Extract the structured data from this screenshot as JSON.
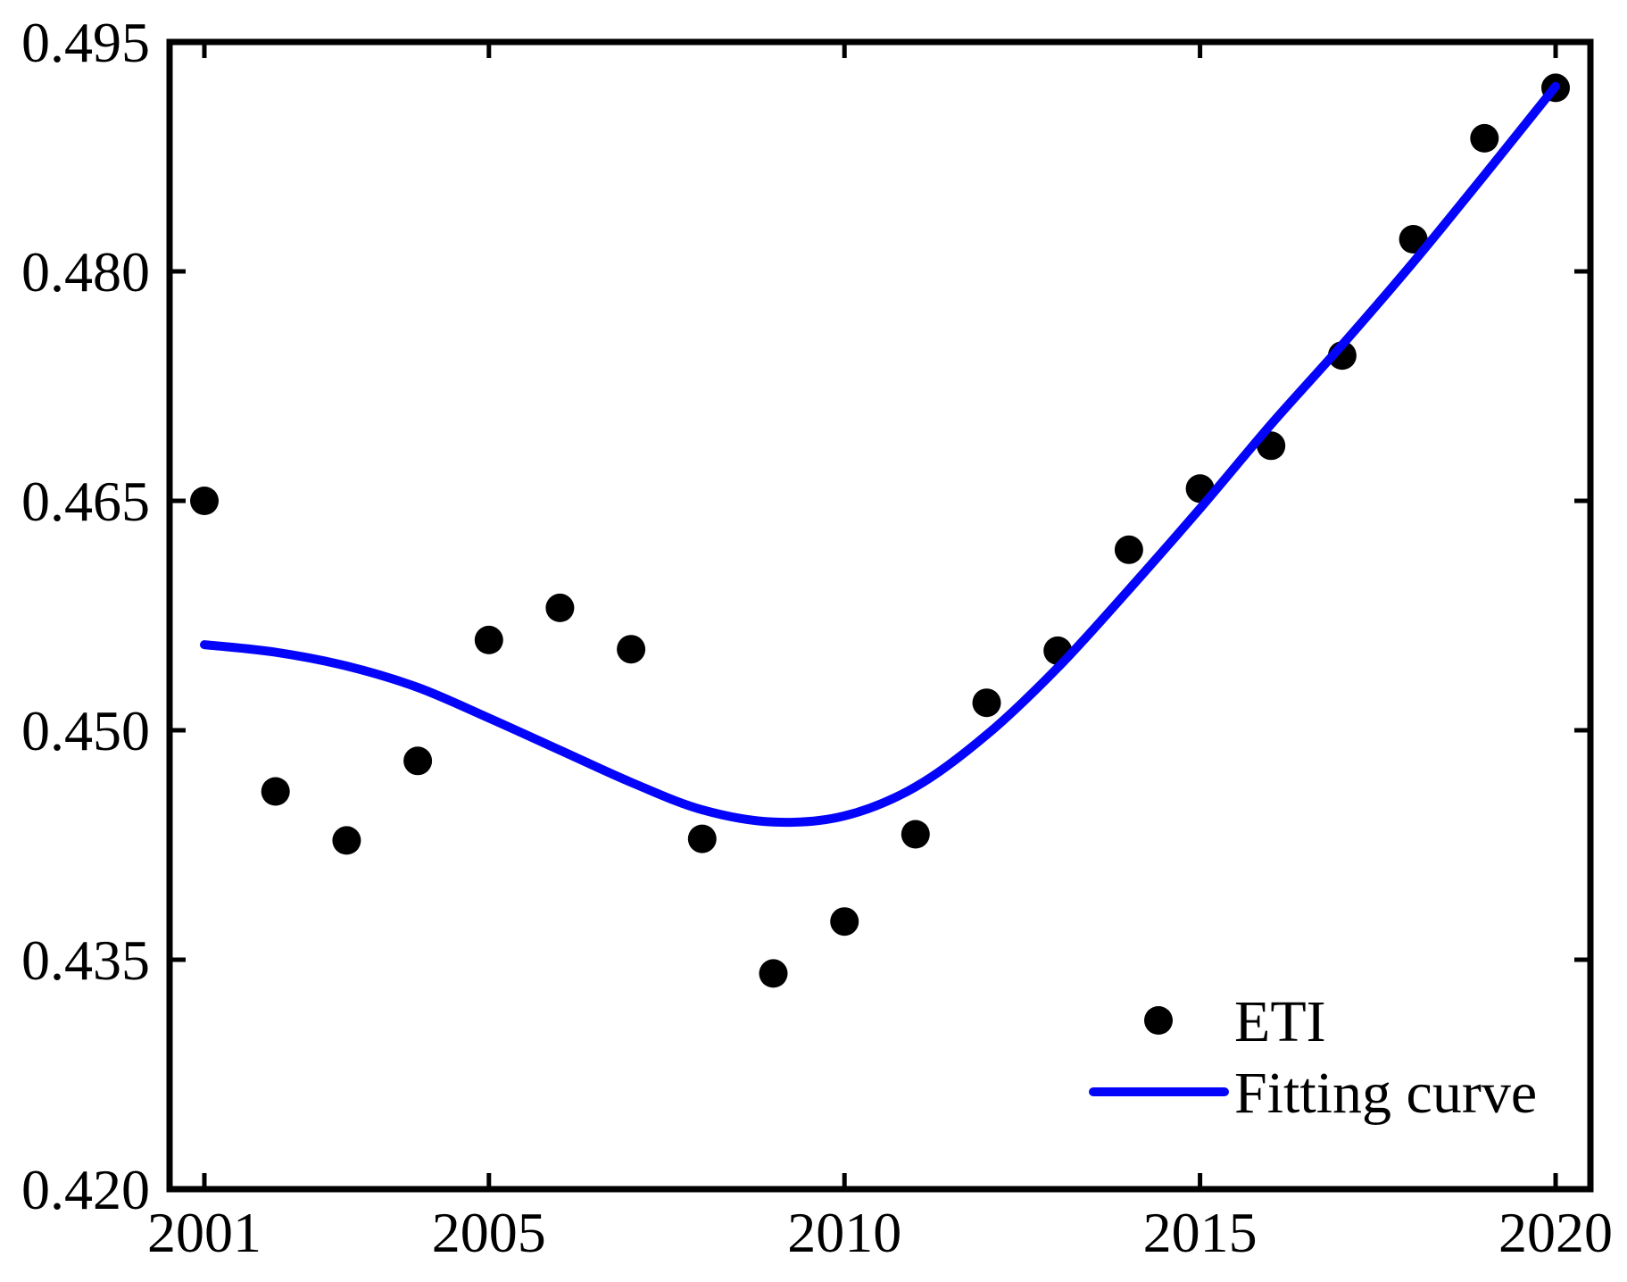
{
  "chart_data": {
    "type": "scatter",
    "title": "",
    "xlabel": "",
    "ylabel": "",
    "grid": false,
    "legend_position": "lower right",
    "xlim": [
      2000.51,
      2020.49
    ],
    "ylim": [
      0.42,
      0.495
    ],
    "x": [
      2001,
      2002,
      2003,
      2004,
      2005,
      2006,
      2007,
      2008,
      2009,
      2010,
      2011,
      2012,
      2013,
      2014,
      2015,
      2016,
      2017,
      2018,
      2019,
      2020
    ],
    "series": [
      {
        "name": "ETI",
        "kind": "scatter",
        "color": "#000000",
        "marker": "filled-circle",
        "values": [
          0.465,
          0.446,
          0.4428,
          0.448,
          0.4559,
          0.458,
          0.4553,
          0.4429,
          0.4341,
          0.4375,
          0.4432,
          0.4518,
          0.4552,
          0.4618,
          0.4658,
          0.4686,
          0.4745,
          0.4821,
          0.4887,
          0.492
        ]
      },
      {
        "name": "Fitting curve",
        "kind": "line",
        "color": "#0404FA",
        "values": [
          0.4556,
          0.4551,
          0.4542,
          0.4528,
          0.4508,
          0.4487,
          0.4466,
          0.4448,
          0.444,
          0.4444,
          0.4463,
          0.4497,
          0.4541,
          0.4592,
          0.4645,
          0.47,
          0.4752,
          0.4806,
          0.4863,
          0.4921
        ]
      }
    ],
    "x_ticks": [
      {
        "label": "2001",
        "value": 2001
      },
      {
        "label": "2005",
        "value": 2005
      },
      {
        "label": "2010",
        "value": 2010
      },
      {
        "label": "2015",
        "value": 2015
      },
      {
        "label": "2020",
        "value": 2020
      }
    ],
    "y_ticks": [
      {
        "label": "0.420",
        "value": 0.42
      },
      {
        "label": "0.435",
        "value": 0.435
      },
      {
        "label": "0.450",
        "value": 0.45
      },
      {
        "label": "0.465",
        "value": 0.465
      },
      {
        "label": "0.480",
        "value": 0.48
      },
      {
        "label": "0.495",
        "value": 0.495
      }
    ],
    "axis_color": "#000000"
  }
}
